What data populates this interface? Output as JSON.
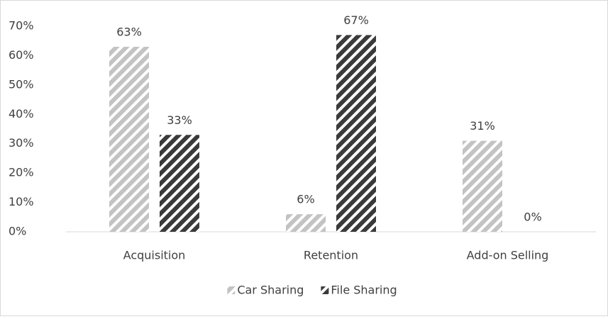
{
  "chart_data": {
    "type": "bar",
    "categories": [
      "Acquisition",
      "Retention",
      "Add-on Selling"
    ],
    "series": [
      {
        "name": "Car Sharing",
        "color": "#c3c3c3",
        "values": [
          63,
          6,
          31
        ],
        "value_labels": [
          "63%",
          "6%",
          "31%"
        ]
      },
      {
        "name": "File Sharing",
        "color": "#3a3a3a",
        "values": [
          33,
          67,
          0
        ],
        "value_labels": [
          "33%",
          "67%",
          "0%"
        ]
      }
    ],
    "ylim": [
      0,
      70
    ],
    "yticks": [
      {
        "value": 0,
        "label": "0%"
      },
      {
        "value": 10,
        "label": "10%"
      },
      {
        "value": 20,
        "label": "20%"
      },
      {
        "value": 30,
        "label": "30%"
      },
      {
        "value": 40,
        "label": "40%"
      },
      {
        "value": 50,
        "label": "50%"
      },
      {
        "value": 60,
        "label": "60%"
      },
      {
        "value": 70,
        "label": "70%"
      }
    ],
    "grid": false,
    "legend": "bottom"
  }
}
